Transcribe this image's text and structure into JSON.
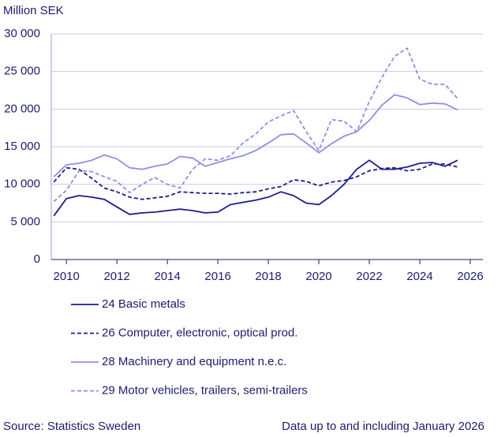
{
  "chart_data": {
    "type": "line",
    "y_label": "Million SEK",
    "source": "Source: Statistics Sweden",
    "note": "Data up to and including January 2026",
    "x": [
      2009.5,
      2010,
      2010.5,
      2011,
      2011.5,
      2012,
      2012.5,
      2013,
      2013.5,
      2014,
      2014.5,
      2015,
      2015.5,
      2016,
      2016.5,
      2017,
      2017.5,
      2018,
      2018.5,
      2019,
      2019.5,
      2020,
      2020.5,
      2021,
      2021.5,
      2022,
      2022.5,
      2023,
      2023.5,
      2024,
      2024.5,
      2025,
      2025.5
    ],
    "xlim": [
      2009.4,
      2026.5
    ],
    "xticks": [
      2010,
      2012,
      2014,
      2016,
      2018,
      2020,
      2022,
      2024,
      2026
    ],
    "ylim": [
      0,
      30000
    ],
    "yticks": [
      0,
      {
        "value": 5000,
        "label": "5 000"
      },
      {
        "value": 10000,
        "label": "10 000"
      },
      {
        "value": 15000,
        "label": "15 000"
      },
      {
        "value": 20000,
        "label": "20 000"
      },
      {
        "value": 25000,
        "label": "25 000"
      },
      {
        "value": 30000,
        "label": "30 000"
      }
    ],
    "grid": true,
    "series": [
      {
        "name": "24 Basic metals",
        "color": "#1c1c8c",
        "dashed": false,
        "values": [
          5800,
          8100,
          8500,
          8300,
          8000,
          7000,
          6000,
          6200,
          6300,
          6500,
          6700,
          6500,
          6200,
          6300,
          7300,
          7600,
          7900,
          8300,
          9000,
          8500,
          7500,
          7300,
          8500,
          10000,
          12000,
          13200,
          12000,
          12000,
          12300,
          12800,
          12900,
          12400,
          13200
        ]
      },
      {
        "name": "26 Computer, electronic, optical prod.",
        "color": "#1c1c8c",
        "dashed": true,
        "values": [
          10300,
          12200,
          12000,
          10800,
          9500,
          9000,
          8300,
          8000,
          8200,
          8400,
          9000,
          8900,
          8800,
          8800,
          8700,
          8900,
          9000,
          9400,
          9700,
          10600,
          10400,
          9800,
          10300,
          10500,
          11000,
          11800,
          12100,
          12200,
          11800,
          12000,
          12700,
          12700,
          12300
        ]
      },
      {
        "name": "28 Machinery and equipment n.e.c.",
        "color": "#8f8fe3",
        "dashed": false,
        "values": [
          11000,
          12600,
          12800,
          13200,
          13900,
          13400,
          12200,
          12000,
          12400,
          12700,
          13700,
          13500,
          12400,
          12900,
          13400,
          13800,
          14500,
          15500,
          16600,
          16700,
          15500,
          14200,
          15400,
          16400,
          17000,
          18500,
          20500,
          21900,
          21500,
          20600,
          20800,
          20700,
          19900
        ]
      },
      {
        "name": "29 Motor vehicles, trailers, semi-trailers",
        "color": "#8f8fe3",
        "dashed": true,
        "values": [
          7700,
          9200,
          11800,
          11700,
          11000,
          10400,
          8900,
          10000,
          10900,
          10000,
          9500,
          12000,
          13400,
          13200,
          13800,
          15500,
          16700,
          18300,
          19100,
          19800,
          17000,
          14500,
          18600,
          18400,
          17000,
          21000,
          24200,
          27000,
          28100,
          24000,
          23300,
          23300,
          21400
        ]
      }
    ]
  }
}
